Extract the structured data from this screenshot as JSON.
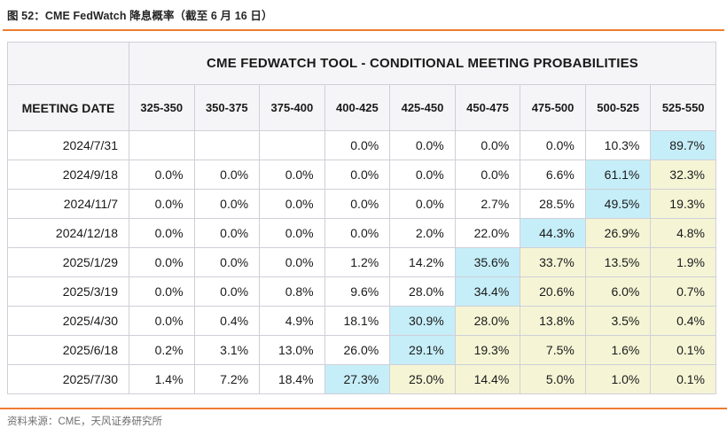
{
  "figure": {
    "title": "图 52：CME FedWatch 降息概率（截至 6 月 16 日）",
    "source": "资料来源：CME，天风证券研究所"
  },
  "table": {
    "banner": "CME FEDWATCH TOOL - CONDITIONAL MEETING PROBABILITIES",
    "date_header": "MEETING DATE",
    "range_headers": [
      "325-350",
      "350-375",
      "375-400",
      "400-425",
      "425-450",
      "450-475",
      "475-500",
      "500-525",
      "525-550"
    ],
    "rows": [
      {
        "date": "2024/7/31",
        "values": [
          "",
          "",
          "",
          "0.0%",
          "0.0%",
          "0.0%",
          "0.0%",
          "10.3%",
          "89.7%"
        ],
        "hl": [
          "",
          "",
          "",
          "",
          "",
          "",
          "",
          "",
          "c"
        ]
      },
      {
        "date": "2024/9/18",
        "values": [
          "0.0%",
          "0.0%",
          "0.0%",
          "0.0%",
          "0.0%",
          "0.0%",
          "6.6%",
          "61.1%",
          "32.3%"
        ],
        "hl": [
          "",
          "",
          "",
          "",
          "",
          "",
          "",
          "c",
          "y"
        ]
      },
      {
        "date": "2024/11/7",
        "values": [
          "0.0%",
          "0.0%",
          "0.0%",
          "0.0%",
          "0.0%",
          "2.7%",
          "28.5%",
          "49.5%",
          "19.3%"
        ],
        "hl": [
          "",
          "",
          "",
          "",
          "",
          "",
          "",
          "c",
          "y"
        ]
      },
      {
        "date": "2024/12/18",
        "values": [
          "0.0%",
          "0.0%",
          "0.0%",
          "0.0%",
          "2.0%",
          "22.0%",
          "44.3%",
          "26.9%",
          "4.8%"
        ],
        "hl": [
          "",
          "",
          "",
          "",
          "",
          "",
          "c",
          "y",
          "y"
        ]
      },
      {
        "date": "2025/1/29",
        "values": [
          "0.0%",
          "0.0%",
          "0.0%",
          "1.2%",
          "14.2%",
          "35.6%",
          "33.7%",
          "13.5%",
          "1.9%"
        ],
        "hl": [
          "",
          "",
          "",
          "",
          "",
          "c",
          "y",
          "y",
          "y"
        ]
      },
      {
        "date": "2025/3/19",
        "values": [
          "0.0%",
          "0.0%",
          "0.8%",
          "9.6%",
          "28.0%",
          "34.4%",
          "20.6%",
          "6.0%",
          "0.7%"
        ],
        "hl": [
          "",
          "",
          "",
          "",
          "",
          "c",
          "y",
          "y",
          "y"
        ]
      },
      {
        "date": "2025/4/30",
        "values": [
          "0.0%",
          "0.4%",
          "4.9%",
          "18.1%",
          "30.9%",
          "28.0%",
          "13.8%",
          "3.5%",
          "0.4%"
        ],
        "hl": [
          "",
          "",
          "",
          "",
          "c",
          "y",
          "y",
          "y",
          "y"
        ]
      },
      {
        "date": "2025/6/18",
        "values": [
          "0.2%",
          "3.1%",
          "13.0%",
          "26.0%",
          "29.1%",
          "19.3%",
          "7.5%",
          "1.6%",
          "0.1%"
        ],
        "hl": [
          "",
          "",
          "",
          "",
          "c",
          "y",
          "y",
          "y",
          "y"
        ]
      },
      {
        "date": "2025/7/30",
        "values": [
          "1.4%",
          "7.2%",
          "18.4%",
          "27.3%",
          "25.0%",
          "14.4%",
          "5.0%",
          "1.0%",
          "0.1%"
        ],
        "hl": [
          "",
          "",
          "",
          "c",
          "y",
          "y",
          "y",
          "y",
          "y"
        ]
      }
    ],
    "colors": {
      "accent_rule": "#ed7d31",
      "highlight_mode": "#c6eef8",
      "highlight_tail": "#f5f5d6"
    }
  }
}
